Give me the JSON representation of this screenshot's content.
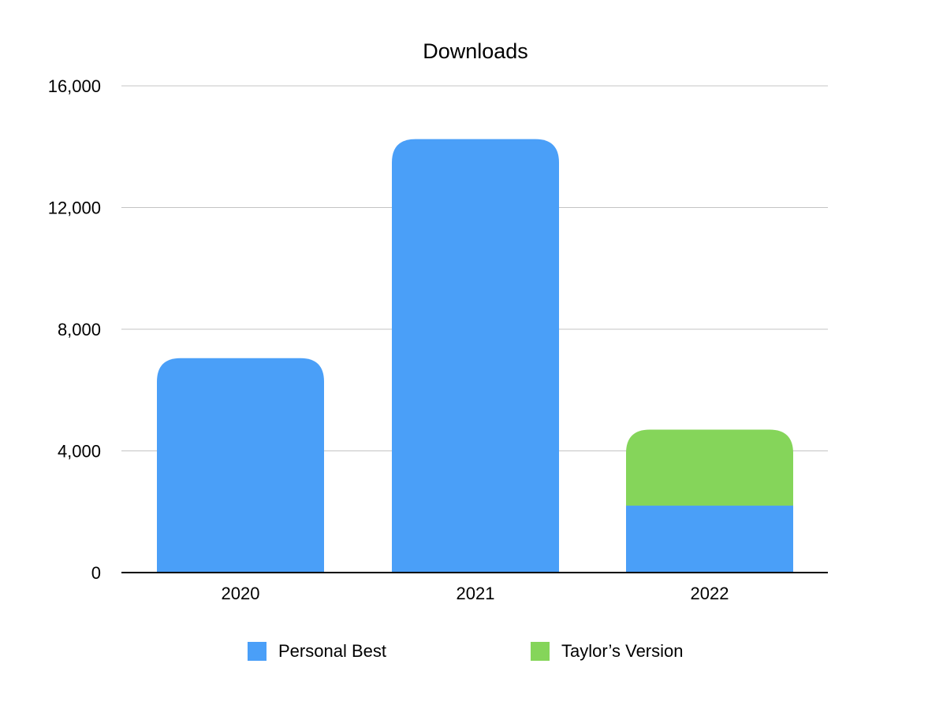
{
  "chart_data": {
    "type": "bar",
    "stacked": true,
    "title": "Downloads",
    "xlabel": "",
    "ylabel": "",
    "categories": [
      "2020",
      "2021",
      "2022"
    ],
    "series": [
      {
        "name": "Personal Best",
        "color": "#4a9ff8",
        "values": [
          7050,
          14250,
          2200
        ]
      },
      {
        "name": "Taylor’s Version",
        "color": "#85d55a",
        "values": [
          0,
          0,
          2500
        ]
      }
    ],
    "ylim": [
      0,
      16000
    ],
    "yticks": [
      0,
      4000,
      8000,
      12000,
      16000
    ],
    "ytick_labels": [
      "0",
      "4,000",
      "8,000",
      "12,000",
      "16,000"
    ],
    "grid": true,
    "legend_position": "bottom"
  }
}
